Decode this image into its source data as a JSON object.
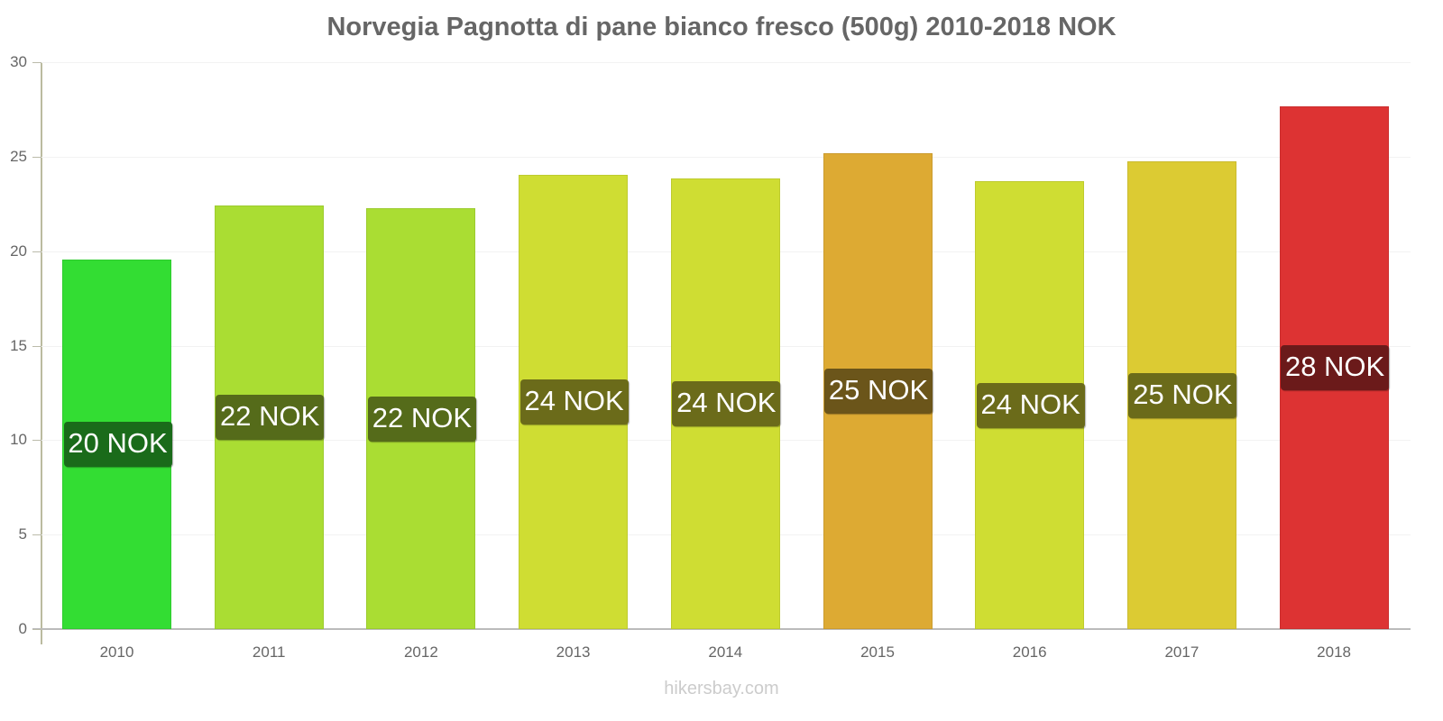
{
  "chart_data": {
    "type": "bar",
    "title": "Norvegia Pagnotta di pane bianco fresco (500g) 2010-2018 NOK",
    "xlabel": "",
    "ylabel": "",
    "ylim": [
      0,
      30
    ],
    "yticks": [
      0,
      5,
      10,
      15,
      20,
      25,
      30
    ],
    "grid": true,
    "legend": null,
    "categories": [
      "2010",
      "2011",
      "2012",
      "2013",
      "2014",
      "2015",
      "2016",
      "2017",
      "2018"
    ],
    "values": [
      19.55,
      22.41,
      22.27,
      24.03,
      23.84,
      25.18,
      23.7,
      24.75,
      27.66
    ],
    "data_labels": [
      "20 NOK",
      "22 NOK",
      "22 NOK",
      "24 NOK",
      "24 NOK",
      "25 NOK",
      "24 NOK",
      "25 NOK",
      "28 NOK"
    ],
    "bar_colors": [
      "#33dd33",
      "#aadd33",
      "#aadd33",
      "#cfdd33",
      "#cfdd33",
      "#ddaa33",
      "#cfdd33",
      "#dccb33",
      "#dd3333"
    ],
    "label_colors": [
      "#1a6b1a",
      "#556b1a",
      "#556b1a",
      "#6b6b1a",
      "#6b6b1a",
      "#6b551a",
      "#6b6b1a",
      "#6b6b1a",
      "#6b1a1a"
    ]
  },
  "watermark": "hikersbay.com"
}
